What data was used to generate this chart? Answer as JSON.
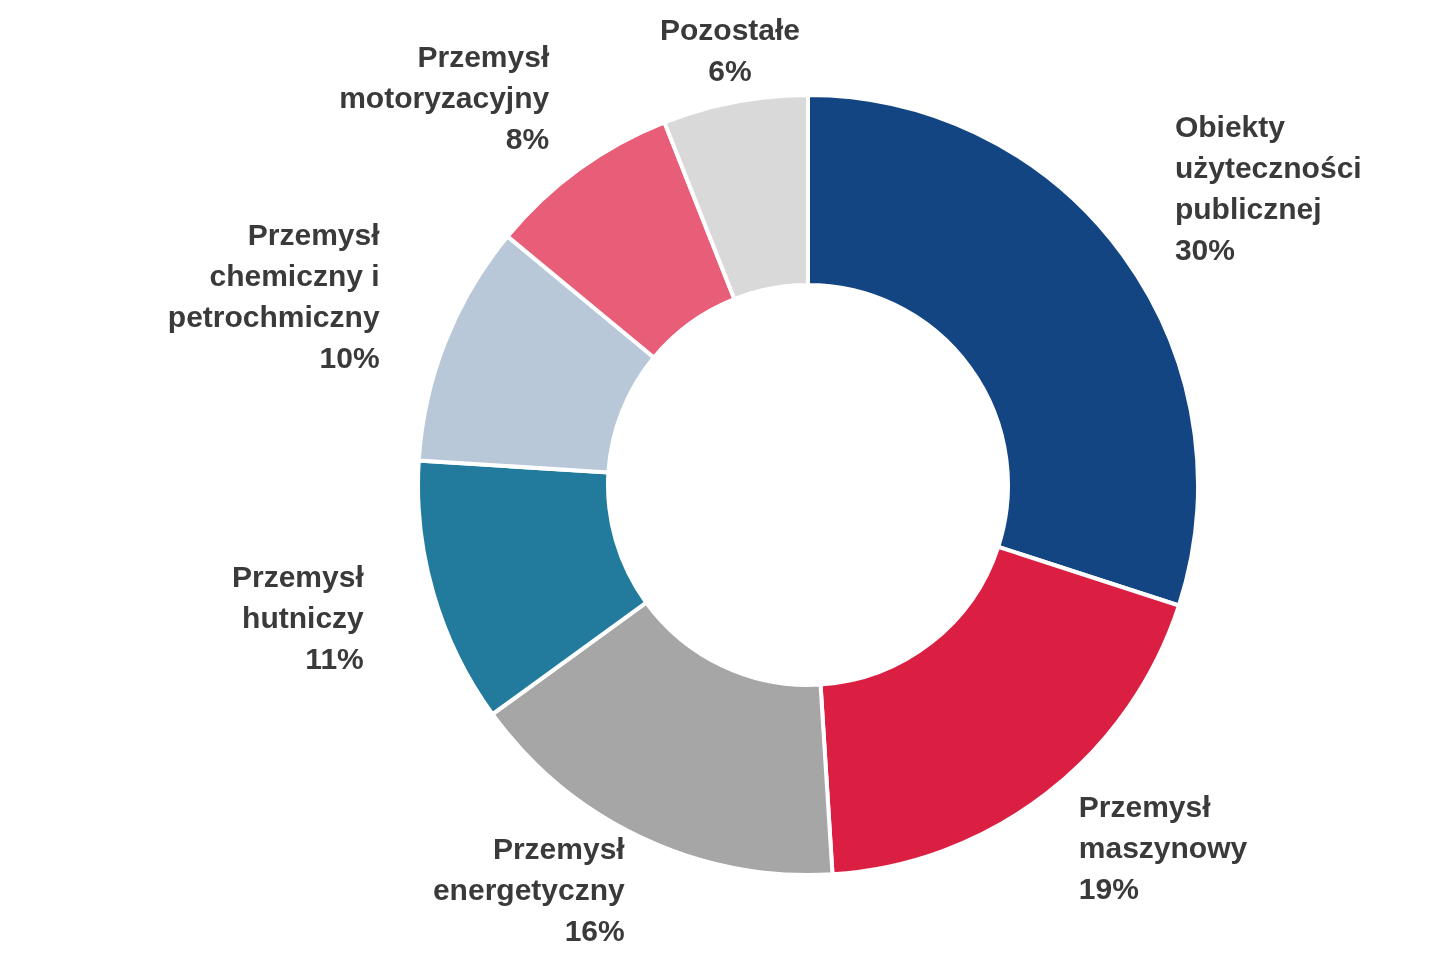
{
  "chart_data": {
    "type": "donut",
    "categories": [
      "Obiekty użyteczności publicznej",
      "Przemysł maszynowy",
      "Przemysł energetyczny",
      "Przemysł hutniczy",
      "Przemysł chemiczny i petrochmiczny",
      "Przemysł motoryzacyjny",
      "Pozostałe"
    ],
    "values": [
      30,
      19,
      16,
      11,
      10,
      8,
      6
    ],
    "value_labels": [
      "30%",
      "19%",
      "16%",
      "11%",
      "10%",
      "8%",
      "6%"
    ],
    "colors": [
      "#134583",
      "#db1f43",
      "#a6a6a6",
      "#227b9c",
      "#b8c8d8",
      "#e85e78",
      "#d9d9d9"
    ]
  }
}
